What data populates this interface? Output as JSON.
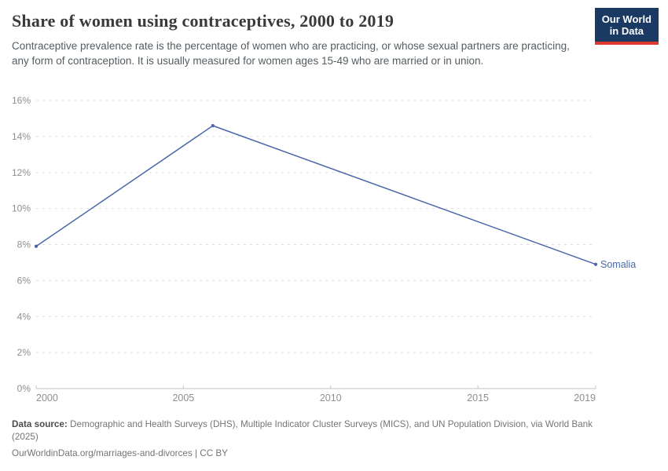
{
  "header": {
    "title": "Share of women using contraceptives, 2000 to 2019",
    "subtitle": "Contraceptive prevalence rate is the percentage of women who are practicing, or whose sexual partners are practicing, any form of contraception. It is usually measured for women ages 15-49 who are married or in union.",
    "logo": {
      "line1": "Our World",
      "line2": "in Data"
    }
  },
  "chart_data": {
    "type": "line",
    "title": "Share of women using contraceptives, 2000 to 2019",
    "xlabel": "",
    "ylabel": "",
    "x_range": [
      2000,
      2019
    ],
    "y_range": [
      0,
      16
    ],
    "grid": true,
    "legend_position": "end-of-line-label",
    "y_ticks": [
      {
        "value": 0,
        "label": "0%"
      },
      {
        "value": 2,
        "label": "2%"
      },
      {
        "value": 4,
        "label": "4%"
      },
      {
        "value": 6,
        "label": "6%"
      },
      {
        "value": 8,
        "label": "8%"
      },
      {
        "value": 10,
        "label": "10%"
      },
      {
        "value": 12,
        "label": "12%"
      },
      {
        "value": 14,
        "label": "14%"
      },
      {
        "value": 16,
        "label": "16%"
      }
    ],
    "x_ticks": [
      {
        "value": 2000,
        "label": "2000"
      },
      {
        "value": 2005,
        "label": "2005"
      },
      {
        "value": 2010,
        "label": "2010"
      },
      {
        "value": 2015,
        "label": "2015"
      },
      {
        "value": 2019,
        "label": "2019"
      }
    ],
    "series": [
      {
        "name": "Somalia",
        "color": "#4a68a9",
        "points": [
          {
            "x": 2000,
            "y": 7.9
          },
          {
            "x": 2006,
            "y": 14.6
          },
          {
            "x": 2019,
            "y": 6.9
          }
        ]
      }
    ]
  },
  "footer": {
    "datasource_label": "Data source:",
    "datasource_text": " Demographic and Health Surveys (DHS), Multiple Indicator Cluster Surveys (MICS), and UN Population Division, via World Bank (2025)",
    "citation": "OurWorldinData.org/marriages-and-divorces | CC BY"
  },
  "colors": {
    "gridline": "#dddddd",
    "axis": "#c3c3c3",
    "tick_label": "#8f8f8f",
    "logo_bg": "#1b3a63",
    "logo_accent": "#dc3a2c"
  }
}
